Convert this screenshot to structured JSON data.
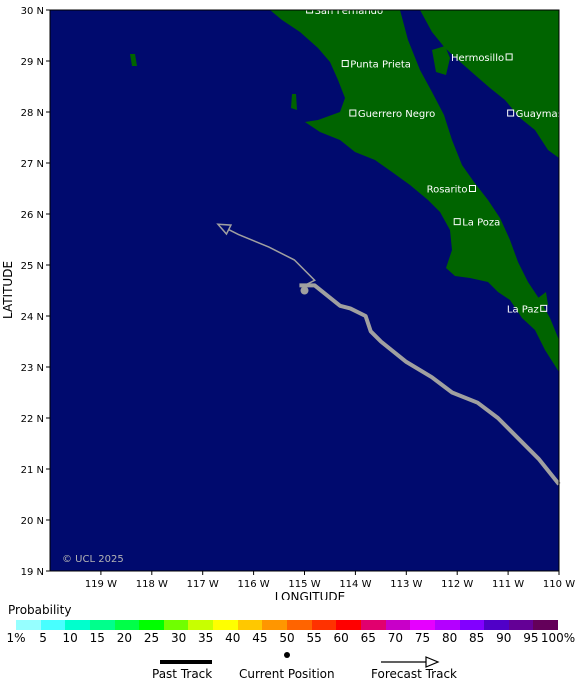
{
  "axes": {
    "xlabel": "LONGITUDE",
    "ylabel": "LATITUDE",
    "lat_ticks": [
      "30 N",
      "29 N",
      "28 N",
      "27 N",
      "26 N",
      "25 N",
      "24 N",
      "23 N",
      "22 N",
      "21 N",
      "20 N",
      "19 N"
    ],
    "lon_ticks": [
      "119 W",
      "118 W",
      "117 W",
      "116 W",
      "115 W",
      "114 W",
      "113 W",
      "112 W",
      "111 W",
      "110 W"
    ],
    "lat_range": [
      19,
      30
    ],
    "lon_range": [
      -120,
      -110
    ]
  },
  "cities": [
    {
      "name": "San Fernando",
      "lon": -114.9,
      "lat": 30.0
    },
    {
      "name": "Punta Prieta",
      "lon": -114.2,
      "lat": 28.95
    },
    {
      "name": "Hermosillo",
      "lon": -110.98,
      "lat": 29.08
    },
    {
      "name": "Guerrero Negro",
      "lon": -114.05,
      "lat": 27.98
    },
    {
      "name": "Guaymas",
      "lon": -110.95,
      "lat": 27.98
    },
    {
      "name": "Rosarito",
      "lon": -111.7,
      "lat": 26.5
    },
    {
      "name": "La Poza",
      "lon": -112.0,
      "lat": 25.85
    },
    {
      "name": "La Paz",
      "lon": -110.3,
      "lat": 24.15
    }
  ],
  "track": {
    "past": [
      [
        -110,
        20.7
      ],
      [
        -110.4,
        21.2
      ],
      [
        -111.2,
        22.0
      ],
      [
        -111.6,
        22.3
      ],
      [
        -112.1,
        22.5
      ],
      [
        -112.5,
        22.8
      ],
      [
        -113.0,
        23.1
      ],
      [
        -113.5,
        23.5
      ],
      [
        -113.7,
        23.7
      ],
      [
        -113.8,
        24.0
      ],
      [
        -114.1,
        24.15
      ],
      [
        -114.3,
        24.2
      ],
      [
        -114.8,
        24.6
      ],
      [
        -115.1,
        24.6
      ]
    ],
    "current": [
      -115.0,
      24.5
    ],
    "forecast": [
      [
        -115.0,
        24.6
      ],
      [
        -114.8,
        24.7
      ],
      [
        -115.2,
        25.1
      ],
      [
        -115.7,
        25.35
      ],
      [
        -116.3,
        25.6
      ],
      [
        -116.7,
        25.8
      ]
    ]
  },
  "copyright": "© UCL 2025",
  "legend": {
    "title": "Probability",
    "colors": [
      "#96ffff",
      "#48ffff",
      "#00ffcd",
      "#00ff8c",
      "#00ff48",
      "#00ff00",
      "#70ff00",
      "#c8ff00",
      "#ffff00",
      "#ffc800",
      "#ff9600",
      "#ff6400",
      "#ff3200",
      "#ff0000",
      "#e1006e",
      "#c800c8",
      "#e600ff",
      "#b400ff",
      "#8200ff",
      "#5000c8",
      "#640096",
      "#64005a"
    ],
    "ticks": [
      "1%",
      "5",
      "10",
      "15",
      "20",
      "25",
      "30",
      "35",
      "40",
      "45",
      "50",
      "55",
      "60",
      "65",
      "70",
      "75",
      "80",
      "85",
      "90",
      "95",
      "100%"
    ],
    "past_track_label": "Past Track",
    "current_position_label": "Current Position",
    "forecast_track_label": "Forecast Track"
  },
  "colors": {
    "ocean": "#000a6e",
    "land": "#006400",
    "track": "#a0a0a0"
  }
}
